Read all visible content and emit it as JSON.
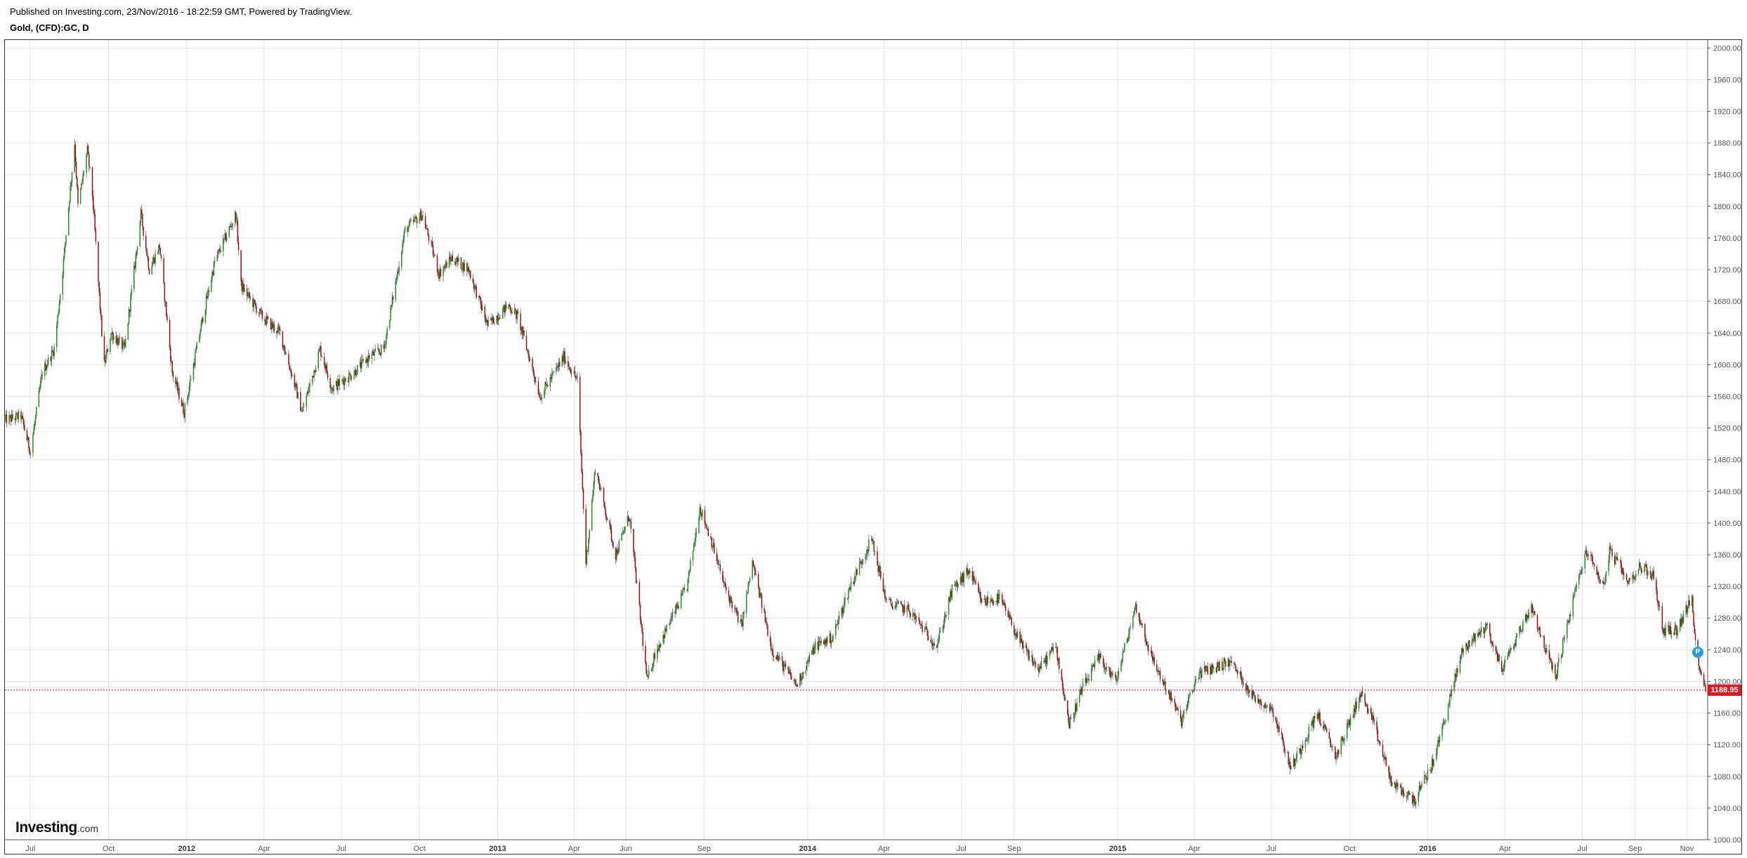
{
  "header": {
    "published": "Published on Investing.com, 23/Nov/2016 - 18:22:59 GMT, Powered by TradingView.",
    "symbol": "Gold, (CFD):GC, D"
  },
  "logo": {
    "brand": "Investing",
    "suffix": ".com"
  },
  "event_marker": {
    "label": "P",
    "color": "#2c9be0"
  },
  "colors": {
    "up": "#1f8f1f",
    "down": "#9a1010",
    "grid": "#e6e6e6",
    "last_price_line": "#e0171f",
    "last_price_badge": "#e0171f"
  },
  "chart_data": {
    "type": "candlestick",
    "symbol": "Gold, (CFD):GC, D",
    "interval": "daily",
    "x_range": [
      "2011-06-01",
      "2016-11-23"
    ],
    "ylim": [
      1000,
      2010
    ],
    "y_ticks": [
      "2000.00",
      "1960.00",
      "1920.00",
      "1880.00",
      "1840.00",
      "1800.00",
      "1760.00",
      "1720.00",
      "1680.00",
      "1640.00",
      "1600.00",
      "1560.00",
      "1520.00",
      "1480.00",
      "1440.00",
      "1400.00",
      "1360.00",
      "1320.00",
      "1280.00",
      "1240.00",
      "1200.00",
      "1160.00",
      "1120.00",
      "1080.00",
      "1040.00",
      "1000.00"
    ],
    "x_ticks": [
      {
        "label": "Jul",
        "date": "2011-07-01",
        "year": false
      },
      {
        "label": "Oct",
        "date": "2011-10-01",
        "year": false
      },
      {
        "label": "2012",
        "date": "2012-01-01",
        "year": true
      },
      {
        "label": "Apr",
        "date": "2012-04-01",
        "year": false
      },
      {
        "label": "Jul",
        "date": "2012-07-01",
        "year": false
      },
      {
        "label": "Oct",
        "date": "2012-10-01",
        "year": false
      },
      {
        "label": "2013",
        "date": "2013-01-01",
        "year": true
      },
      {
        "label": "Apr",
        "date": "2013-04-01",
        "year": false
      },
      {
        "label": "Jun",
        "date": "2013-06-01",
        "year": false
      },
      {
        "label": "Sep",
        "date": "2013-09-01",
        "year": false
      },
      {
        "label": "2014",
        "date": "2014-01-01",
        "year": true
      },
      {
        "label": "Apr",
        "date": "2014-04-01",
        "year": false
      },
      {
        "label": "Jul",
        "date": "2014-07-01",
        "year": false
      },
      {
        "label": "Sep",
        "date": "2014-09-01",
        "year": false
      },
      {
        "label": "2015",
        "date": "2015-01-01",
        "year": true
      },
      {
        "label": "Apr",
        "date": "2015-04-01",
        "year": false
      },
      {
        "label": "Jul",
        "date": "2015-07-01",
        "year": false
      },
      {
        "label": "Oct",
        "date": "2015-10-01",
        "year": false
      },
      {
        "label": "2016",
        "date": "2016-01-01",
        "year": true
      },
      {
        "label": "Apr",
        "date": "2016-04-01",
        "year": false
      },
      {
        "label": "Jul",
        "date": "2016-07-01",
        "year": false
      },
      {
        "label": "Sep",
        "date": "2016-09-01",
        "year": false
      },
      {
        "label": "Nov",
        "date": "2016-11-01",
        "year": false
      }
    ],
    "last_price": 1188.95,
    "last_price_label": "1188.95",
    "close_path": [
      [
        "2011-06-01",
        1530
      ],
      [
        "2011-06-20",
        1535
      ],
      [
        "2011-07-01",
        1490
      ],
      [
        "2011-07-15",
        1590
      ],
      [
        "2011-07-29",
        1620
      ],
      [
        "2011-08-08",
        1720
      ],
      [
        "2011-08-22",
        1880
      ],
      [
        "2011-08-26",
        1800
      ],
      [
        "2011-09-06",
        1870
      ],
      [
        "2011-09-12",
        1815
      ],
      [
        "2011-09-23",
        1640
      ],
      [
        "2011-09-26",
        1600
      ],
      [
        "2011-10-04",
        1640
      ],
      [
        "2011-10-20",
        1620
      ],
      [
        "2011-11-08",
        1790
      ],
      [
        "2011-11-18",
        1720
      ],
      [
        "2011-11-30",
        1750
      ],
      [
        "2011-12-15",
        1590
      ],
      [
        "2011-12-29",
        1540
      ],
      [
        "2012-01-20",
        1660
      ],
      [
        "2012-02-03",
        1730
      ],
      [
        "2012-02-28",
        1790
      ],
      [
        "2012-03-05",
        1700
      ],
      [
        "2012-03-30",
        1660
      ],
      [
        "2012-04-20",
        1640
      ],
      [
        "2012-05-16",
        1540
      ],
      [
        "2012-06-06",
        1620
      ],
      [
        "2012-06-20",
        1570
      ],
      [
        "2012-07-16",
        1590
      ],
      [
        "2012-08-03",
        1610
      ],
      [
        "2012-08-20",
        1620
      ],
      [
        "2012-09-14",
        1770
      ],
      [
        "2012-10-04",
        1790
      ],
      [
        "2012-10-24",
        1715
      ],
      [
        "2012-11-08",
        1735
      ],
      [
        "2012-11-28",
        1720
      ],
      [
        "2012-12-20",
        1650
      ],
      [
        "2013-01-14",
        1675
      ],
      [
        "2013-01-25",
        1660
      ],
      [
        "2013-02-20",
        1560
      ],
      [
        "2013-03-20",
        1610
      ],
      [
        "2013-04-05",
        1580
      ],
      [
        "2013-04-15",
        1350
      ],
      [
        "2013-04-26",
        1470
      ],
      [
        "2013-05-20",
        1360
      ],
      [
        "2013-06-05",
        1410
      ],
      [
        "2013-06-26",
        1200
      ],
      [
        "2013-07-05",
        1235
      ],
      [
        "2013-08-12",
        1320
      ],
      [
        "2013-08-27",
        1420
      ],
      [
        "2013-09-09",
        1380
      ],
      [
        "2013-09-25",
        1320
      ],
      [
        "2013-10-15",
        1270
      ],
      [
        "2013-10-28",
        1350
      ],
      [
        "2013-11-20",
        1240
      ],
      [
        "2013-12-19",
        1195
      ],
      [
        "2014-01-10",
        1245
      ],
      [
        "2014-01-30",
        1255
      ],
      [
        "2014-02-20",
        1320
      ],
      [
        "2014-03-17",
        1380
      ],
      [
        "2014-04-04",
        1300
      ],
      [
        "2014-04-30",
        1290
      ],
      [
        "2014-06-02",
        1245
      ],
      [
        "2014-06-20",
        1315
      ],
      [
        "2014-07-10",
        1340
      ],
      [
        "2014-07-25",
        1300
      ],
      [
        "2014-08-15",
        1305
      ],
      [
        "2014-09-10",
        1245
      ],
      [
        "2014-09-30",
        1215
      ],
      [
        "2014-10-20",
        1245
      ],
      [
        "2014-11-05",
        1145
      ],
      [
        "2014-11-20",
        1190
      ],
      [
        "2014-12-10",
        1230
      ],
      [
        "2014-12-30",
        1200
      ],
      [
        "2015-01-22",
        1295
      ],
      [
        "2015-02-10",
        1230
      ],
      [
        "2015-03-17",
        1150
      ],
      [
        "2015-04-06",
        1210
      ],
      [
        "2015-05-14",
        1225
      ],
      [
        "2015-06-10",
        1180
      ],
      [
        "2015-07-02",
        1165
      ],
      [
        "2015-07-24",
        1090
      ],
      [
        "2015-08-24",
        1160
      ],
      [
        "2015-09-15",
        1105
      ],
      [
        "2015-10-14",
        1185
      ],
      [
        "2015-10-28",
        1150
      ],
      [
        "2015-11-20",
        1070
      ],
      [
        "2015-12-17",
        1050
      ],
      [
        "2016-01-08",
        1100
      ],
      [
        "2016-02-11",
        1240
      ],
      [
        "2016-03-10",
        1270
      ],
      [
        "2016-03-28",
        1215
      ],
      [
        "2016-05-02",
        1295
      ],
      [
        "2016-05-30",
        1205
      ],
      [
        "2016-06-24",
        1320
      ],
      [
        "2016-07-06",
        1365
      ],
      [
        "2016-07-26",
        1320
      ],
      [
        "2016-08-02",
        1365
      ],
      [
        "2016-08-25",
        1325
      ],
      [
        "2016-09-06",
        1345
      ],
      [
        "2016-09-22",
        1335
      ],
      [
        "2016-10-04",
        1265
      ],
      [
        "2016-10-20",
        1265
      ],
      [
        "2016-11-07",
        1305
      ],
      [
        "2016-11-10",
        1255
      ],
      [
        "2016-11-15",
        1225
      ],
      [
        "2016-11-23",
        1188.95
      ]
    ]
  }
}
